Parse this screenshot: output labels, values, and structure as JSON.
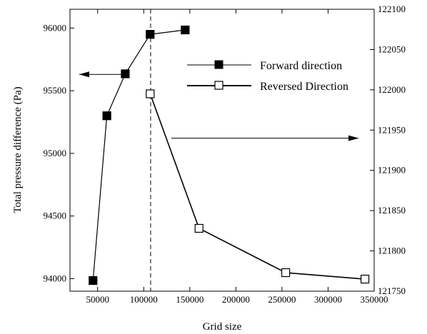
{
  "chart_data": {
    "type": "line",
    "xlabel": "Grid size",
    "ylabel": "Total pressure difference (Pa)",
    "xlim": [
      20000,
      350000
    ],
    "ylim_left": [
      93900,
      96150
    ],
    "ylim_right": [
      121750,
      122100
    ],
    "x_ticks": [
      50000,
      100000,
      150000,
      200000,
      250000,
      300000,
      350000
    ],
    "x_tick_labels": [
      "50000",
      "100000",
      "150000",
      "200000",
      "250000",
      "300000",
      "350000"
    ],
    "y_left_ticks": [
      94000,
      94500,
      95000,
      95500,
      96000
    ],
    "y_left_tick_labels": [
      "94000",
      "94500",
      "95000",
      "95500",
      "96000"
    ],
    "y_right_ticks": [
      121750,
      121800,
      121850,
      121900,
      121950,
      122000,
      122050,
      122100
    ],
    "y_right_tick_labels": [
      "121750",
      "121800",
      "121850",
      "121900",
      "121950",
      "122000",
      "122050",
      "122100"
    ],
    "vertical_reference_x": 107500,
    "series": [
      {
        "name": "Forward direction",
        "axis": "left",
        "marker": "filled-square",
        "color": "#000000",
        "x": [
          45000,
          60000,
          80000,
          107000,
          145000
        ],
        "y": [
          93985,
          95300,
          95635,
          95950,
          95985
        ]
      },
      {
        "name": "Reversed Direction",
        "axis": "right",
        "marker": "open-square",
        "color": "#000000",
        "x": [
          107000,
          160000,
          254000,
          340000
        ],
        "y": [
          121995,
          121828,
          121773,
          121765
        ]
      }
    ],
    "annotations": [
      {
        "kind": "arrow",
        "axis": "left",
        "direction": "left",
        "x_from": 77000,
        "x_to": 30000,
        "y": 95630
      },
      {
        "kind": "arrow",
        "axis": "right",
        "direction": "right",
        "x_from": 130000,
        "x_to": 333000,
        "y": 121940
      }
    ],
    "legend": {
      "position": "top-right-inside"
    }
  }
}
